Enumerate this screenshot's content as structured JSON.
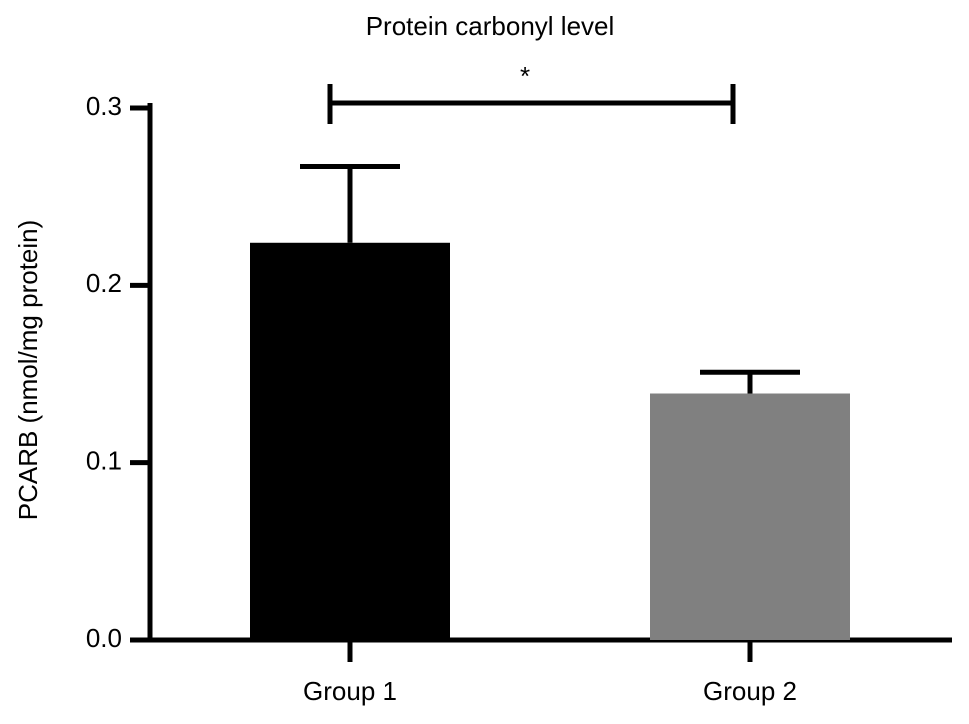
{
  "chart_data": {
    "type": "bar",
    "title": "Protein carbonyl level",
    "y_label": "PCARB (nmol/mg protein)",
    "categories": [
      "Group 1",
      "Group 2"
    ],
    "values": [
      0.224,
      0.139
    ],
    "errors": [
      0.043,
      0.012
    ],
    "colors": [
      "#000000",
      "#808080"
    ],
    "ylim": [
      0,
      0.3
    ],
    "yticks": [
      {
        "value": 0,
        "label": "0.0"
      },
      0.1,
      0.2,
      0.3
    ],
    "annotation": "*"
  }
}
